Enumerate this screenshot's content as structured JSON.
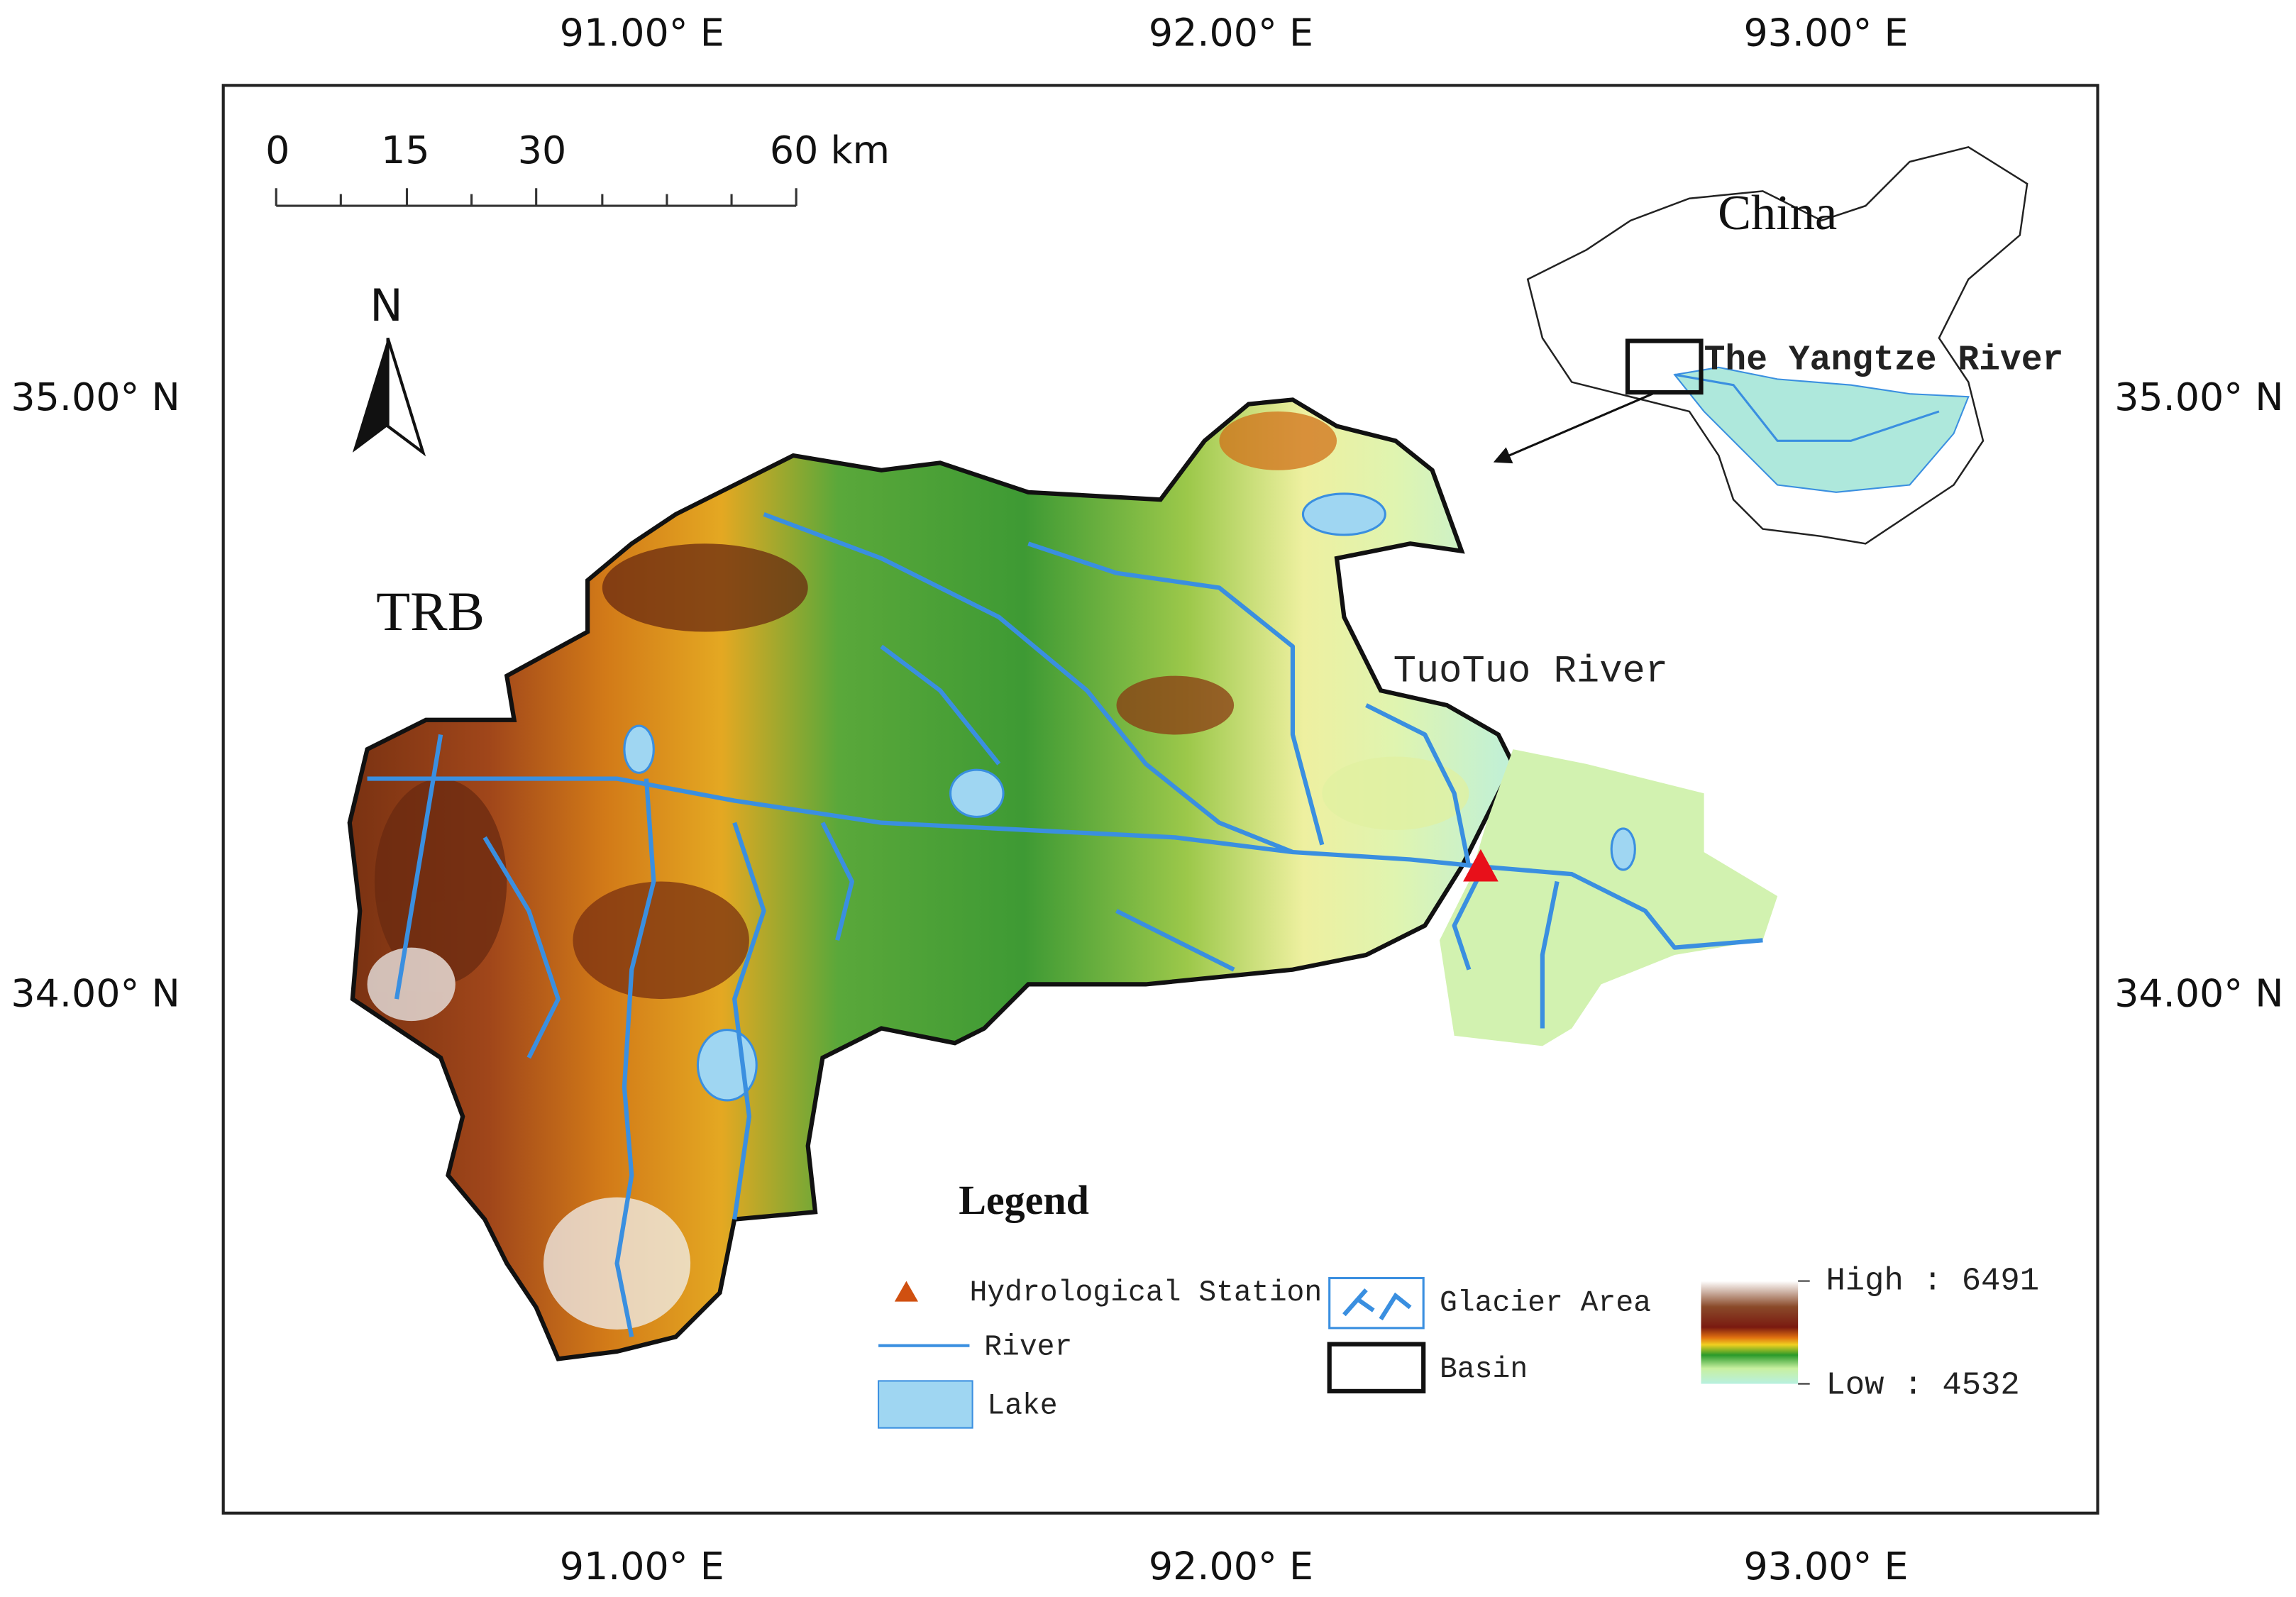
{
  "map": {
    "top_labels": [
      "91.00° E",
      "92.00° E",
      "93.00° E"
    ],
    "bottom_labels": [
      "91.00° E",
      "92.00° E",
      "93.00° E"
    ],
    "left_labels": [
      "35.00° N",
      "34.00° N"
    ],
    "right_labels": [
      "35.00° N",
      "34.00° N"
    ],
    "scale_bar": [
      "0",
      "15",
      "30",
      "60 km"
    ],
    "north": "N",
    "basin_label": "TRB",
    "river_label": "TuoTuo River",
    "inset": {
      "country": "China",
      "river": "The Yangtze River"
    }
  },
  "legend": {
    "title": "Legend",
    "items": [
      "Hydrological Station",
      "River",
      "Lake",
      "Glacier Area",
      "Basin"
    ],
    "high": "High : 6491",
    "low": "Low : 4532"
  }
}
